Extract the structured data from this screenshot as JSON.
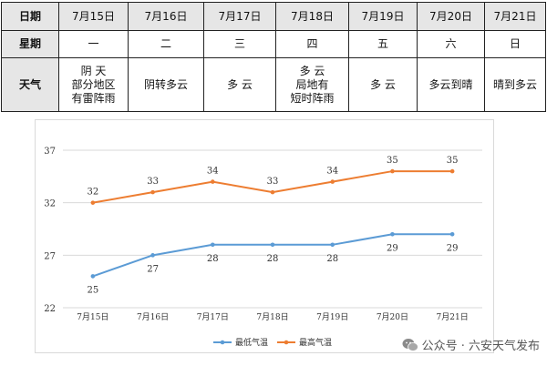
{
  "table": {
    "row_headers": [
      "日期",
      "星期",
      "天气"
    ],
    "dates": [
      "7月15日",
      "7月16日",
      "7月17日",
      "7月18日",
      "7月19日",
      "7月20日",
      "7月21日"
    ],
    "weekdays": [
      "一",
      "二",
      "三",
      "四",
      "五",
      "六",
      "日"
    ],
    "weather": [
      "阴 天\n部分地区\n有雷阵雨",
      "阴转多云",
      "多 云",
      "多 云\n局地有\n短时阵雨",
      "多 云",
      "多云到晴",
      "晴到多云"
    ]
  },
  "chart_data": {
    "type": "line",
    "categories": [
      "7月15日",
      "7月16日",
      "7月17日",
      "7月18日",
      "7月19日",
      "7月20日",
      "7月21日"
    ],
    "series": [
      {
        "name": "最低气温",
        "values": [
          25,
          27,
          28,
          28,
          28,
          29,
          29
        ],
        "color": "#5b9bd5"
      },
      {
        "name": "最高气温",
        "values": [
          32,
          33,
          34,
          33,
          34,
          35,
          35
        ],
        "color": "#ed7d31"
      }
    ],
    "yticks": [
      22,
      27,
      32,
      37
    ],
    "ylim": [
      22,
      37
    ],
    "grid": "horizontal",
    "legend": "bottom"
  },
  "watermark": "公众号 · 六安天气发布",
  "colors": {
    "header_bg": "#e6e6e6",
    "grid": "#d9d9d9"
  }
}
